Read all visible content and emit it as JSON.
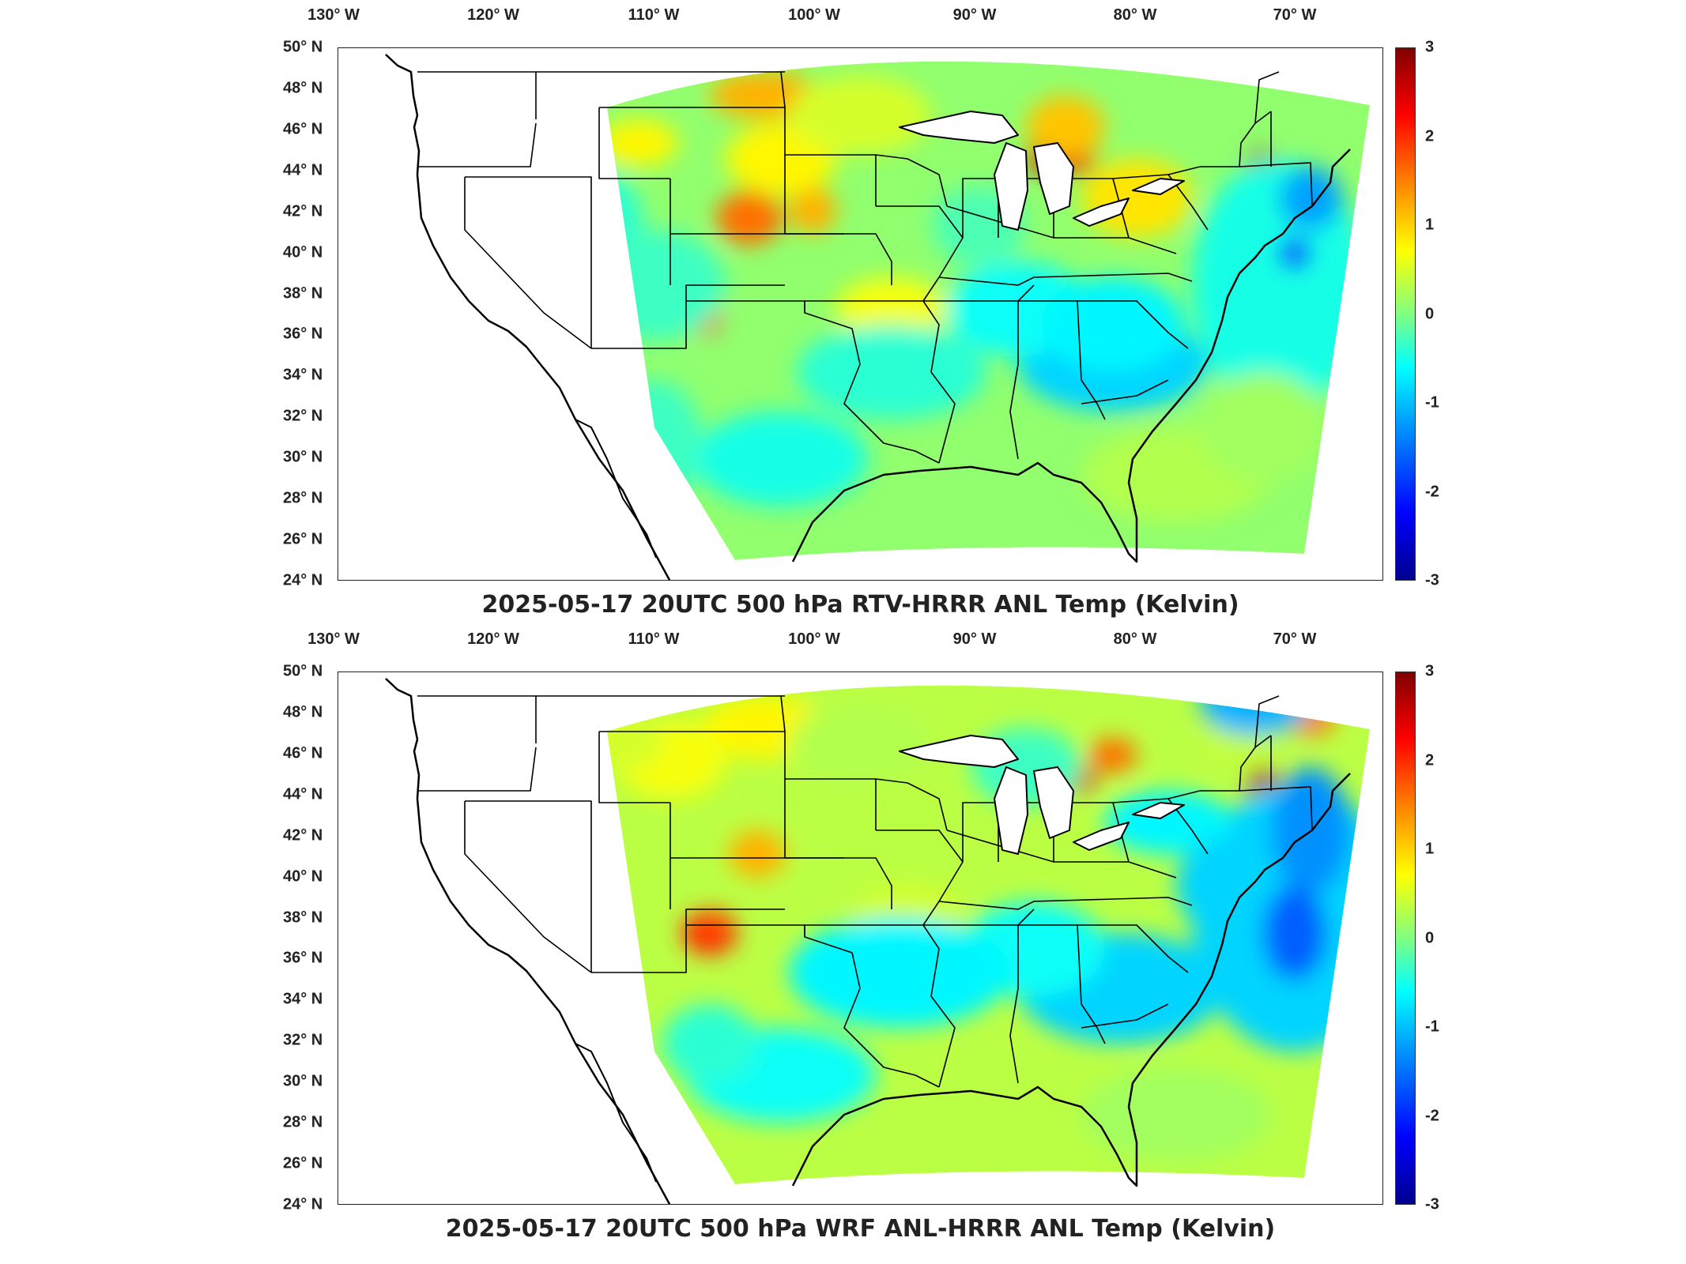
{
  "panels": [
    {
      "title": "2025-05-17 20UTC 500 hPa RTV-HRRR ANL Temp (Kelvin)",
      "variant": "rtv"
    },
    {
      "title": "2025-05-17 20UTC 500 hPa WRF ANL-HRRR ANL Temp (Kelvin)",
      "variant": "wrf"
    }
  ],
  "x_axis": {
    "ticks": [
      "130",
      "120",
      "110",
      "100",
      "90",
      "80",
      "70"
    ],
    "hemisphere": "W",
    "degree_symbol": "°"
  },
  "y_axis": {
    "ticks": [
      "50",
      "48",
      "46",
      "44",
      "42",
      "40",
      "38",
      "36",
      "34",
      "32",
      "30",
      "28",
      "26",
      "24"
    ],
    "hemisphere": "N",
    "degree_symbol": "°"
  },
  "colorbar": {
    "ticks": [
      "3",
      "2",
      "1",
      "0",
      "-1",
      "-2",
      "-3"
    ],
    "range": [
      -3,
      3
    ],
    "colormap": "jet",
    "colors": [
      "#00008f",
      "#0000ff",
      "#00ffff",
      "#80ff80",
      "#ffff00",
      "#ff0000",
      "#800000"
    ]
  },
  "map": {
    "projection": "conic",
    "region": "CONUS",
    "lon_range": [
      -130,
      -64
    ],
    "lat_range": [
      24,
      50
    ],
    "data_domain": "eastern two-thirds of CONUS (HRRR domain)",
    "linework": [
      "coastlines",
      "state boundaries",
      "great lakes"
    ]
  }
}
